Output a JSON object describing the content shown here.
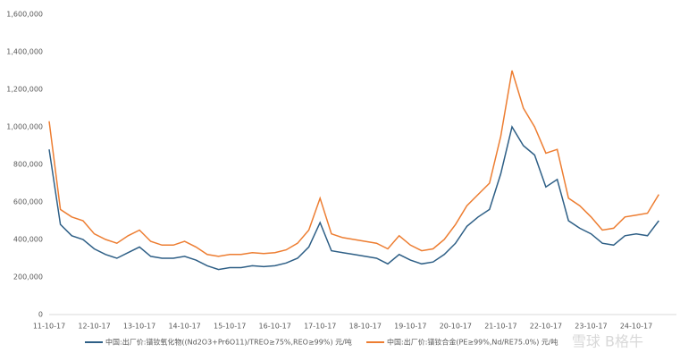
{
  "chart_data": {
    "type": "line",
    "categories": [
      "11-10-17",
      null,
      null,
      null,
      "12-10-17",
      null,
      null,
      null,
      "13-10-17",
      null,
      null,
      null,
      "14-10-17",
      null,
      null,
      null,
      "15-10-17",
      null,
      null,
      null,
      "16-10-17",
      null,
      null,
      null,
      "17-10-17",
      null,
      null,
      null,
      "18-10-17",
      null,
      null,
      null,
      "19-10-17",
      null,
      null,
      null,
      "20-10-17",
      null,
      null,
      null,
      "21-10-17",
      null,
      null,
      null,
      "22-10-17",
      null,
      null,
      null,
      "23-10-17",
      null,
      null,
      null,
      "24-10-17",
      null,
      null
    ],
    "series": [
      {
        "name": "中国:出厂价:镨钕氧化物((Nd2O3+Pr6O11)/TREO≥75%,REO≥99%) 元/吨",
        "color": "#2e5f86",
        "values": [
          880000,
          480000,
          420000,
          400000,
          350000,
          320000,
          300000,
          330000,
          360000,
          310000,
          300000,
          300000,
          310000,
          290000,
          260000,
          240000,
          250000,
          250000,
          260000,
          255000,
          260000,
          275000,
          300000,
          360000,
          490000,
          340000,
          330000,
          320000,
          310000,
          300000,
          270000,
          320000,
          290000,
          270000,
          280000,
          320000,
          380000,
          470000,
          520000,
          560000,
          750000,
          1000000,
          900000,
          850000,
          680000,
          720000,
          500000,
          460000,
          430000,
          380000,
          370000,
          420000,
          430000,
          420000,
          500000
        ]
      },
      {
        "name": "中国:出厂价:镨钕合金(PE≥99%,Nd/RE75.0%) 元/吨",
        "color": "#ed7d31",
        "values": [
          1030000,
          560000,
          520000,
          500000,
          430000,
          400000,
          380000,
          420000,
          450000,
          390000,
          370000,
          370000,
          390000,
          360000,
          320000,
          310000,
          320000,
          320000,
          330000,
          325000,
          330000,
          345000,
          380000,
          450000,
          620000,
          430000,
          410000,
          400000,
          390000,
          380000,
          350000,
          420000,
          370000,
          340000,
          350000,
          400000,
          480000,
          580000,
          640000,
          700000,
          950000,
          1300000,
          1100000,
          1000000,
          860000,
          880000,
          620000,
          580000,
          520000,
          450000,
          460000,
          520000,
          530000,
          540000,
          640000
        ]
      }
    ],
    "ylim": [
      0,
      1600000
    ],
    "yticks": [
      0,
      {
        "value": 200000,
        "label": "200,000"
      },
      {
        "value": 400000,
        "label": "400,000"
      },
      {
        "value": 600000,
        "label": "600,000"
      },
      {
        "value": 800000,
        "label": "800,000"
      },
      {
        "value": 1000000,
        "label": "1,000,000"
      },
      {
        "value": 1200000,
        "label": "1,200,000"
      },
      {
        "value": 1400000,
        "label": "1,400,000"
      },
      {
        "value": 1600000,
        "label": "1,600,000"
      }
    ],
    "grid": false,
    "watermark": "雪球 B格牛"
  }
}
